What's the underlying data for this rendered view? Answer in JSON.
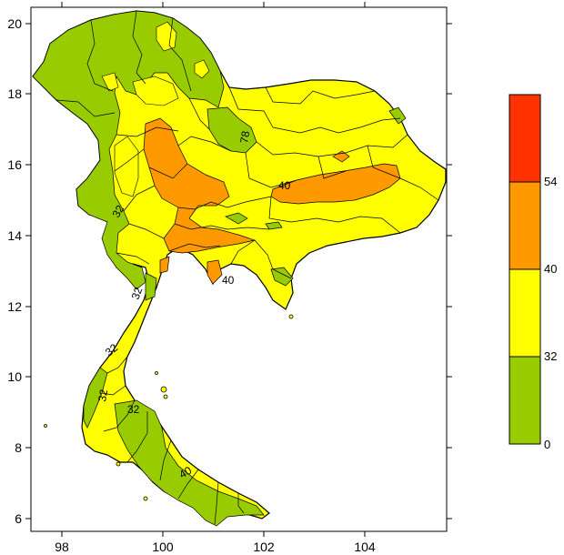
{
  "map": {
    "x_ticks": [
      "98",
      "100",
      "102",
      "104"
    ],
    "y_ticks": [
      "20",
      "18",
      "16",
      "14",
      "12",
      "10",
      "8",
      "6"
    ],
    "contour_labels": [
      "78",
      "40",
      "32",
      "32",
      "32",
      "32",
      "32",
      "40",
      "40"
    ],
    "colors": {
      "low": "#99cc00",
      "mid": "#ffff00",
      "high": "#ff9900",
      "very_high": "#ff3300",
      "border": "#000000"
    }
  },
  "legend": {
    "labels": [
      "54",
      "40",
      "32",
      "0"
    ],
    "bins": [
      {
        "color": "#ff3300"
      },
      {
        "color": "#ff9900"
      },
      {
        "color": "#ffff00"
      },
      {
        "color": "#99cc00"
      }
    ]
  }
}
